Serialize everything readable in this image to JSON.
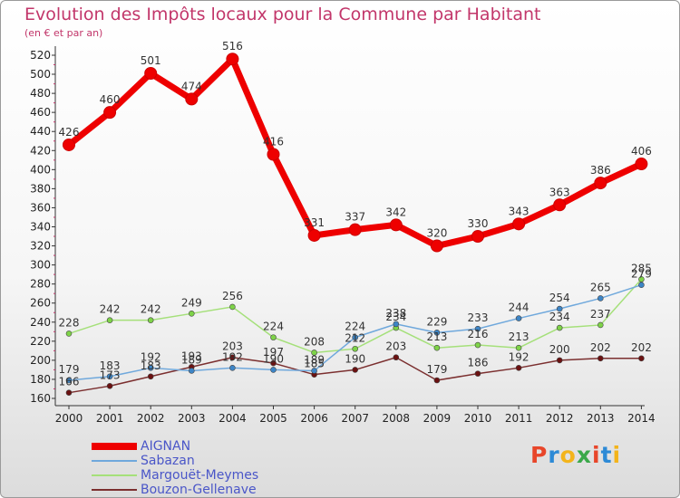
{
  "header": {
    "title": "Evolution des Impôts locaux pour la Commune par Habitant",
    "subtitle": "(en € et par an)"
  },
  "logo": {
    "text": "Proxiti",
    "colors": [
      "#e8462a",
      "#2d8ad6",
      "#f3b41b",
      "#3aa84a",
      "#e8462a",
      "#2d8ad6",
      "#f3b41b"
    ]
  },
  "chart_data": {
    "type": "line",
    "title": "Evolution des Impôts locaux pour la Commune par Habitant",
    "subtitle": "(en € et par an)",
    "x": [
      "2000",
      "2001",
      "2002",
      "2003",
      "2004",
      "2005",
      "2006",
      "2007",
      "2008",
      "2009",
      "2010",
      "2011",
      "2012",
      "2013",
      "2014"
    ],
    "yticks": [
      160,
      180,
      200,
      220,
      240,
      260,
      280,
      300,
      320,
      340,
      360,
      380,
      400,
      420,
      440,
      460,
      480,
      500,
      520
    ],
    "ylim": [
      160,
      520
    ],
    "grid": false,
    "legend_position": "bottom-left",
    "series": [
      {
        "name": "AIGNAN",
        "color": "#ee0000",
        "marker": "#ee0000",
        "values": [
          426,
          460,
          501,
          474,
          516,
          416,
          331,
          337,
          342,
          320,
          330,
          343,
          363,
          386,
          406
        ],
        "labels": [
          "426",
          "460",
          "501",
          "474",
          "516",
          "416",
          "331",
          "337",
          "342",
          "320",
          "330",
          "343",
          "363",
          "386",
          "406"
        ]
      },
      {
        "name": "Sabazan",
        "color": "#6fa8dc",
        "marker": "#3d85c6",
        "values": [
          179,
          183,
          192,
          189,
          192,
          190,
          189,
          224,
          238,
          229,
          233,
          244,
          254,
          265,
          279
        ],
        "labels": [
          "179",
          "183",
          "192",
          "189",
          "192",
          "190",
          "189",
          "224",
          "238",
          "229",
          "233",
          "244",
          "254",
          "265",
          "279"
        ]
      },
      {
        "name": "Margouët-Meymes",
        "color": "#a5e07a",
        "marker": "#7ed348",
        "values": [
          228,
          242,
          242,
          249,
          256,
          224,
          208,
          212,
          234,
          213,
          216,
          213,
          234,
          237,
          285
        ],
        "labels": [
          "228",
          "242",
          "242",
          "249",
          "256",
          "224",
          "208",
          "212",
          "234",
          "213",
          "216",
          "213",
          "234",
          "237",
          "285"
        ]
      },
      {
        "name": "Bouzon-Gellenave",
        "color": "#7b2f2f",
        "marker": "#6b1111",
        "values": [
          166,
          173,
          183,
          193,
          203,
          197,
          185,
          190,
          203,
          179,
          186,
          192,
          200,
          202,
          202
        ],
        "labels": [
          "166",
          "173",
          "183",
          "193",
          "203",
          "197",
          "185",
          "190",
          "203",
          "179",
          "186",
          "192",
          "200",
          "202",
          "202"
        ]
      }
    ]
  }
}
